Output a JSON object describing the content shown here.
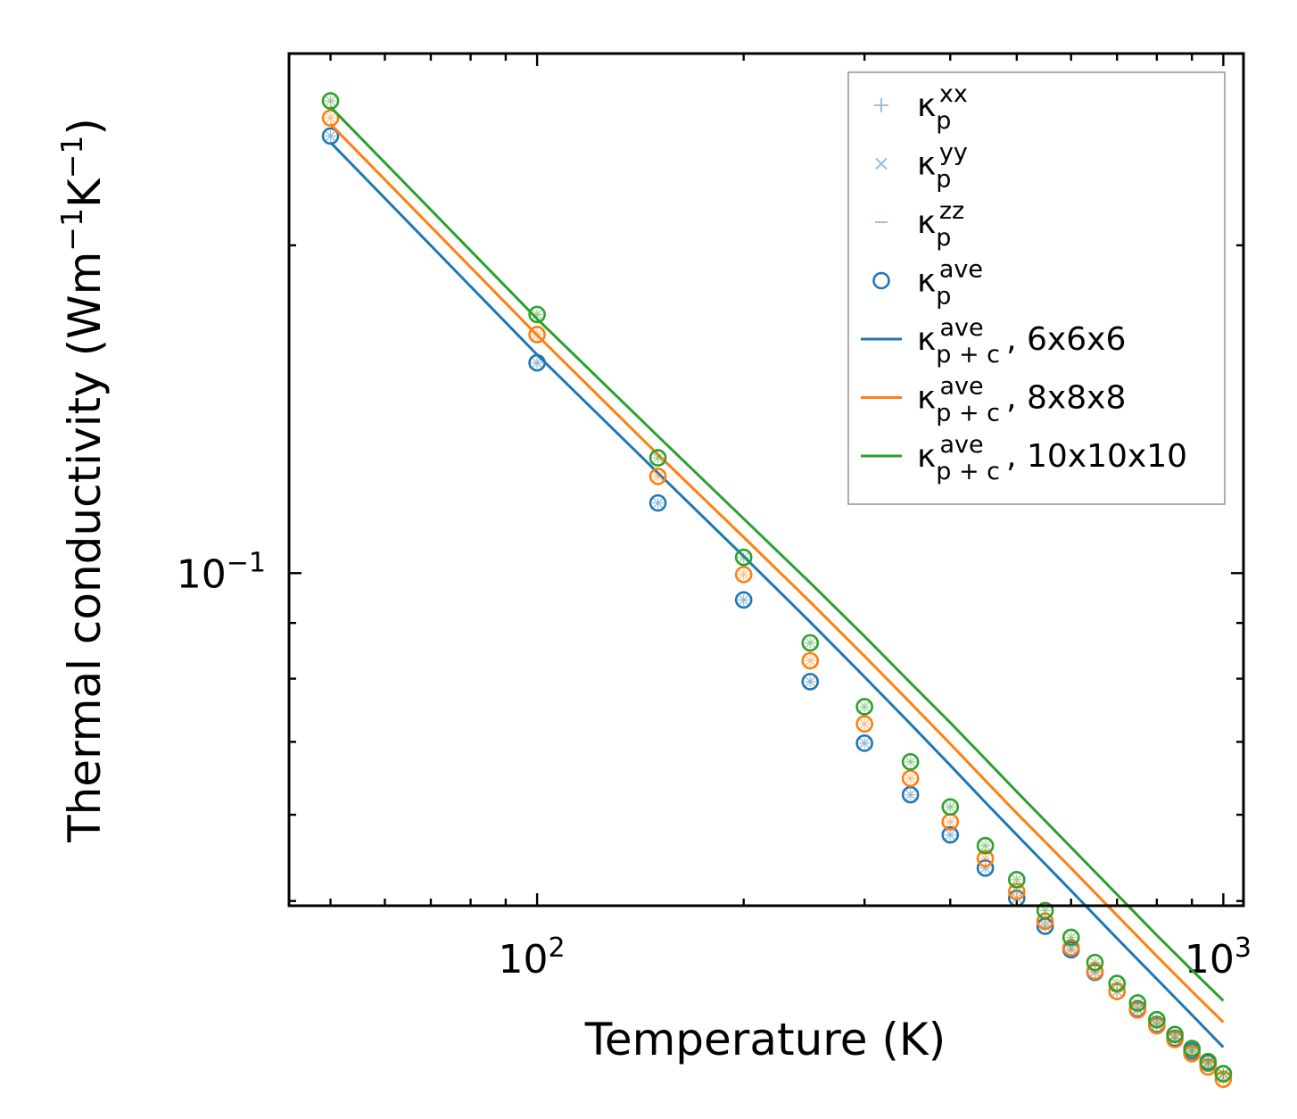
{
  "chart_data": {
    "type": "line",
    "xscale": "log",
    "yscale": "log",
    "xlabel": "Temperature (K)",
    "ylabel": "Thermal conductivity (Wm",
    "ylabel_sup1": "−1",
    "ylabel_mid": "K",
    "ylabel_sup2": "−1",
    "ylabel_end": ")",
    "xlim": [
      43.5,
      1070
    ],
    "ylim": [
      0.0495,
      0.3
    ],
    "x_major_ticks": [
      {
        "value": 100,
        "base": "10",
        "exp": "2"
      },
      {
        "value": 1000,
        "base": "10",
        "exp": "3"
      }
    ],
    "y_major_ticks": [
      {
        "value": 0.1,
        "base": "10",
        "exp": "−1"
      }
    ],
    "temperatures": [
      50,
      100,
      150,
      200,
      250,
      300,
      350,
      400,
      450,
      500,
      550,
      600,
      650,
      700,
      750,
      800,
      850,
      900,
      950,
      1000
    ],
    "line_temperatures": [
      50,
      100,
      150,
      200,
      250,
      300,
      350,
      400,
      450,
      500,
      600,
      700,
      800,
      900,
      1000
    ],
    "series": [
      {
        "name": "6x6x6",
        "color": "#1f77b4",
        "points": [
          0.252,
          0.156,
          0.116,
          0.0945,
          0.0795,
          0.0698,
          0.0626,
          0.0575,
          0.0536,
          0.0503,
          0.0474,
          0.0451,
          0.043,
          0.0413,
          0.0398,
          0.0385,
          0.0374,
          0.0364,
          0.0355,
          0.0347
        ],
        "line": [
          0.2486,
          0.1587,
          0.1236,
          0.1036,
          0.0902,
          0.0803,
          0.0727,
          0.0666,
          0.0616,
          0.0575,
          0.0511,
          0.0462,
          0.0424,
          0.0393,
          0.0367
        ]
      },
      {
        "name": "8x8x8",
        "color": "#ff7f0e",
        "points": [
          0.2618,
          0.1656,
          0.1227,
          0.0997,
          0.0831,
          0.0727,
          0.0648,
          0.0591,
          0.0547,
          0.051,
          0.0479,
          0.0453,
          0.0431,
          0.0413,
          0.0397,
          0.0384,
          0.0373,
          0.0362,
          0.0352,
          0.0343
        ],
        "line": [
          0.2584,
          0.1654,
          0.1285,
          0.1079,
          0.0941,
          0.0839,
          0.076,
          0.0697,
          0.0645,
          0.0602,
          0.0536,
          0.0485,
          0.0445,
          0.0413,
          0.0387
        ]
      },
      {
        "name": "10x10x10",
        "color": "#2ca02c",
        "points": [
          0.2714,
          0.1728,
          0.1276,
          0.1034,
          0.0863,
          0.0754,
          0.0671,
          0.061,
          0.0562,
          0.0523,
          0.049,
          0.0463,
          0.0439,
          0.042,
          0.0403,
          0.0389,
          0.0377,
          0.0366,
          0.0356,
          0.0347
        ],
        "line": [
          0.268,
          0.1712,
          0.1336,
          0.1122,
          0.098,
          0.0875,
          0.0793,
          0.0729,
          0.0675,
          0.063,
          0.056,
          0.0507,
          0.0465,
          0.0432,
          0.0405
        ]
      }
    ],
    "legend": {
      "placement": "top-right",
      "entries": [
        {
          "kind": "plus",
          "kappa": "κ",
          "sub": "p",
          "sup": "xx",
          "tail": ""
        },
        {
          "kind": "cross",
          "kappa": "κ",
          "sub": "p",
          "sup": "yy",
          "tail": ""
        },
        {
          "kind": "dash",
          "kappa": "κ",
          "sub": "p",
          "sup": "zz",
          "tail": ""
        },
        {
          "kind": "circle",
          "kappa": "κ",
          "sub": "p",
          "sup": "ave",
          "tail": ""
        },
        {
          "kind": "line",
          "series": 0,
          "kappa": "κ",
          "sub": "p + c",
          "sup": "ave",
          "tail": ", 6x6x6"
        },
        {
          "kind": "line",
          "series": 1,
          "kappa": "κ",
          "sub": "p + c",
          "sup": "ave",
          "tail": ", 8x8x8"
        },
        {
          "kind": "line",
          "series": 2,
          "kappa": "κ",
          "sub": "p + c",
          "sup": "ave",
          "tail": ", 10x10x10"
        }
      ]
    }
  }
}
